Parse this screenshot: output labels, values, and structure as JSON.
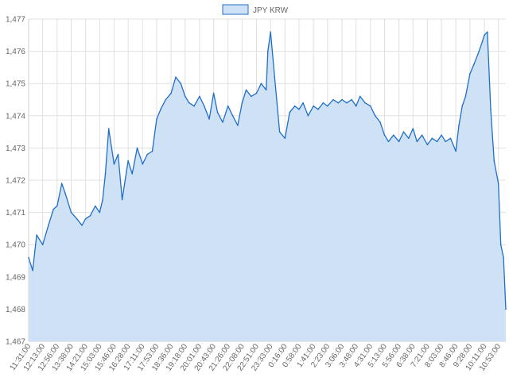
{
  "chart_data": {
    "type": "area",
    "title": "",
    "xlabel": "",
    "ylabel": "",
    "ylim": [
      1467,
      1477
    ],
    "y_ticks": [
      "1,467",
      "1,468",
      "1,469",
      "1,470",
      "1,471",
      "1,472",
      "1,473",
      "1,474",
      "1,475",
      "1,476",
      "1,477"
    ],
    "x_tick_labels": [
      "11:31:00",
      "12:13:00",
      "12:56:00",
      "13:38:00",
      "14:21:00",
      "15:03:00",
      "15:46:00",
      "16:28:00",
      "17:11:00",
      "17:53:00",
      "18:36:00",
      "19:18:00",
      "20:01:00",
      "20:43:00",
      "21:26:00",
      "22:08:00",
      "22:51:00",
      "23:33:00",
      "0:16:00",
      "0:58:00",
      "1:41:00",
      "2:23:00",
      "3:06:00",
      "3:48:00",
      "4:31:00",
      "5:13:00",
      "5:56:00",
      "6:38:00",
      "7:21:00",
      "8:03:00",
      "8:46:00",
      "9:28:00",
      "10:11:00",
      "10:53:00"
    ],
    "grid": true,
    "legend_position": "top-center",
    "series": [
      {
        "name": "JPY KRW",
        "fill_color": "#cfe1f5",
        "line_color": "#1f6fc9",
        "x": [
          "11:31:00",
          "11:43:00",
          "11:55:00",
          "12:13:00",
          "12:30:00",
          "12:45:00",
          "12:56:00",
          "13:10:00",
          "13:20:00",
          "13:38:00",
          "13:55:00",
          "14:10:00",
          "14:21:00",
          "14:35:00",
          "14:50:00",
          "15:03:00",
          "15:12:00",
          "15:20:00",
          "15:30:00",
          "15:46:00",
          "15:58:00",
          "16:10:00",
          "16:28:00",
          "16:40:00",
          "16:55:00",
          "17:11:00",
          "17:25:00",
          "17:40:00",
          "17:53:00",
          "18:05:00",
          "18:20:00",
          "18:36:00",
          "18:50:00",
          "19:05:00",
          "19:18:00",
          "19:30:00",
          "19:45:00",
          "20:01:00",
          "20:15:00",
          "20:30:00",
          "20:43:00",
          "20:55:00",
          "21:10:00",
          "21:26:00",
          "21:40:00",
          "21:55:00",
          "22:08:00",
          "22:20:00",
          "22:35:00",
          "22:51:00",
          "23:05:00",
          "23:20:00",
          "23:25:00",
          "23:33:00",
          "23:45:00",
          "0:00:00",
          "0:16:00",
          "0:30:00",
          "0:45:00",
          "0:58:00",
          "1:10:00",
          "1:25:00",
          "1:41:00",
          "1:55:00",
          "2:10:00",
          "2:23:00",
          "2:40:00",
          "2:55:00",
          "3:06:00",
          "3:20:00",
          "3:35:00",
          "3:48:00",
          "4:00:00",
          "4:15:00",
          "4:31:00",
          "4:45:00",
          "5:00:00",
          "5:13:00",
          "5:25:00",
          "5:40:00",
          "5:56:00",
          "6:10:00",
          "6:25:00",
          "6:38:00",
          "6:50:00",
          "7:05:00",
          "7:21:00",
          "7:35:00",
          "7:50:00",
          "8:03:00",
          "8:15:00",
          "8:30:00",
          "8:46:00",
          "8:55:00",
          "9:05:00",
          "9:15:00",
          "9:28:00",
          "9:40:00",
          "9:55:00",
          "10:05:00",
          "10:11:00",
          "10:20:00",
          "10:30:00",
          "10:40:00",
          "10:53:00",
          "11:00:00",
          "11:08:00",
          "11:15:00"
        ],
        "values": [
          1469.6,
          1469.2,
          1470.3,
          1470.0,
          1470.6,
          1471.1,
          1471.2,
          1471.9,
          1471.6,
          1471.0,
          1470.8,
          1470.6,
          1470.8,
          1470.9,
          1471.2,
          1471.0,
          1471.4,
          1472.2,
          1473.6,
          1472.5,
          1472.8,
          1471.4,
          1472.6,
          1472.2,
          1473.0,
          1472.5,
          1472.8,
          1472.9,
          1473.9,
          1474.2,
          1474.5,
          1474.7,
          1475.2,
          1475.0,
          1474.6,
          1474.4,
          1474.3,
          1474.6,
          1474.3,
          1473.9,
          1474.7,
          1474.1,
          1473.8,
          1474.3,
          1474.0,
          1473.7,
          1474.4,
          1474.8,
          1474.6,
          1474.7,
          1475.0,
          1474.8,
          1476.0,
          1476.6,
          1475.2,
          1473.5,
          1473.3,
          1474.1,
          1474.3,
          1474.2,
          1474.4,
          1474.0,
          1474.3,
          1474.2,
          1474.4,
          1474.3,
          1474.5,
          1474.4,
          1474.5,
          1474.4,
          1474.5,
          1474.3,
          1474.6,
          1474.4,
          1474.3,
          1474.0,
          1473.8,
          1473.4,
          1473.2,
          1473.4,
          1473.2,
          1473.5,
          1473.3,
          1473.6,
          1473.2,
          1473.4,
          1473.1,
          1473.3,
          1473.2,
          1473.4,
          1473.2,
          1473.3,
          1472.9,
          1473.7,
          1474.3,
          1474.6,
          1475.3,
          1475.6,
          1476.0,
          1476.3,
          1476.5,
          1476.6,
          1474.2,
          1472.6,
          1471.9,
          1470.0,
          1469.6,
          1468.0
        ]
      }
    ]
  }
}
